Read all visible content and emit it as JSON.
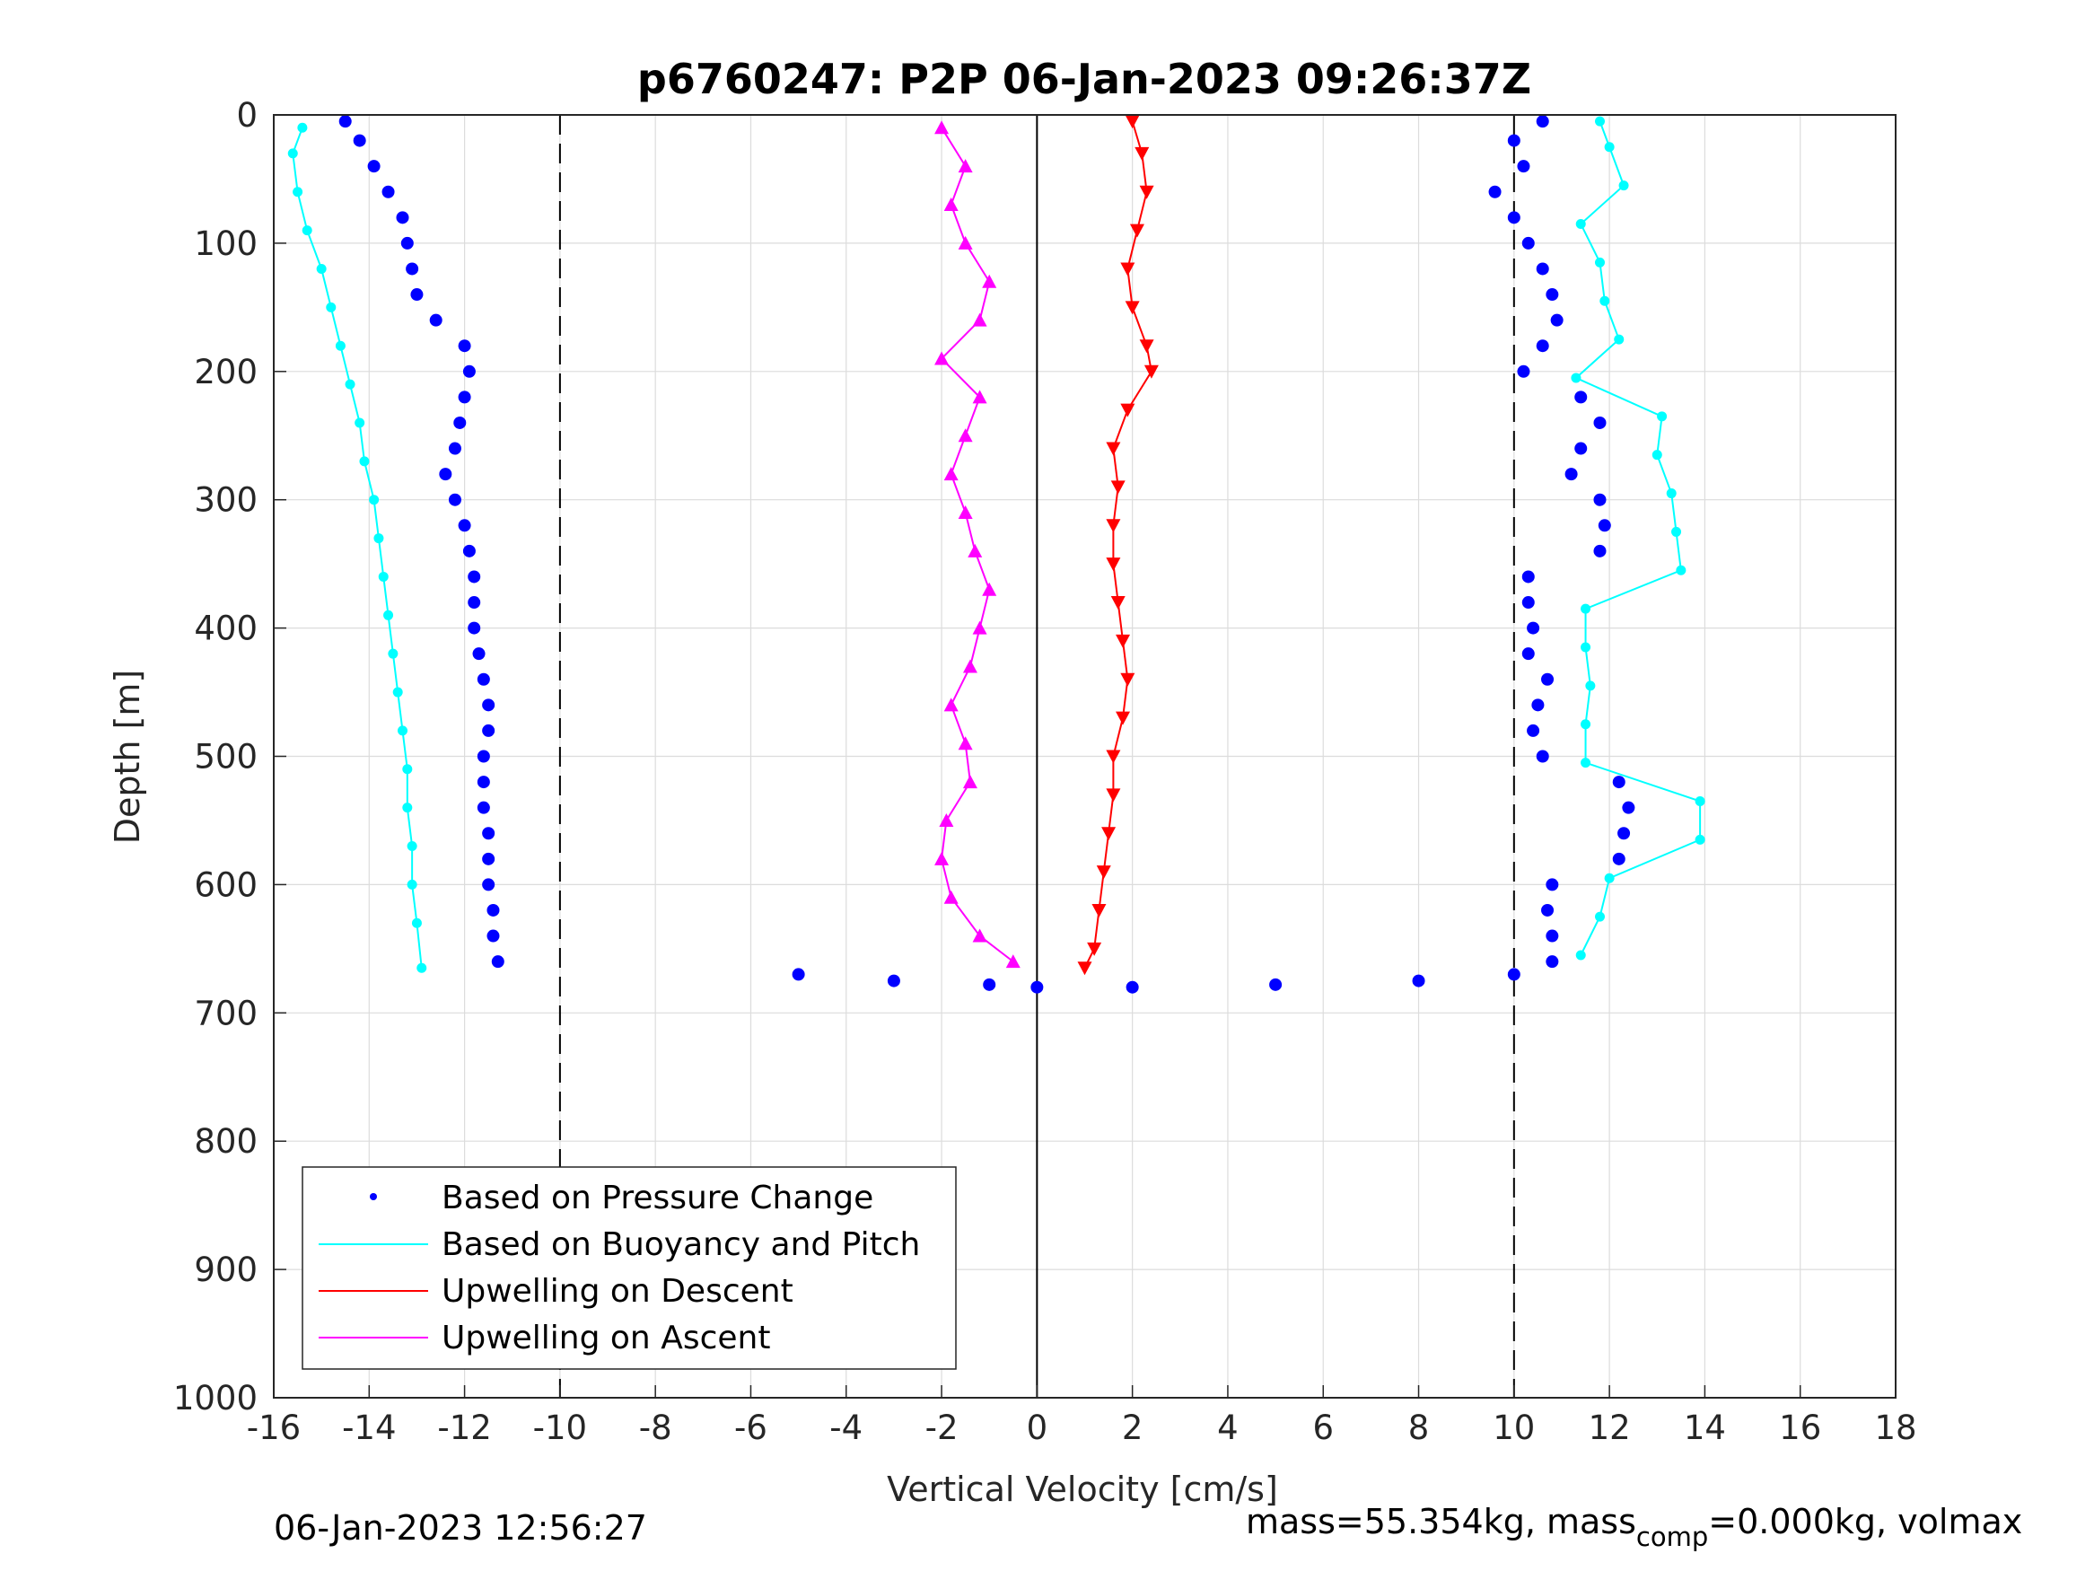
{
  "chart_data": {
    "type": "scatter",
    "title": "p6760247: P2P 06-Jan-2023 09:26:37Z",
    "xlabel": "Vertical Velocity [cm/s]",
    "ylabel": "Depth [m]",
    "xlim": [
      -16,
      18
    ],
    "ylim": [
      0,
      1000
    ],
    "y_reversed": true,
    "xticks": [
      -16,
      -14,
      -12,
      -10,
      -8,
      -6,
      -4,
      -2,
      0,
      2,
      4,
      6,
      8,
      10,
      12,
      14,
      16,
      18
    ],
    "xtick_labels": [
      "-16",
      "-14",
      "-12",
      "-10",
      "-8",
      "-6",
      "-4",
      "-2",
      "0",
      "2",
      "4",
      "6",
      "8",
      "10",
      "12",
      "14",
      "16",
      "18"
    ],
    "yticks": [
      0,
      100,
      200,
      300,
      400,
      500,
      600,
      700,
      800,
      900,
      1000
    ],
    "ytick_labels": [
      "0",
      "100",
      "200",
      "300",
      "400",
      "500",
      "600",
      "700",
      "800",
      "900",
      "1000"
    ],
    "grid": true,
    "legend_position": "bottom-left",
    "reference_lines": [
      {
        "x": -10,
        "style": "dashed"
      },
      {
        "x": 0,
        "style": "solid"
      },
      {
        "x": 10,
        "style": "dashed"
      }
    ],
    "legend": [
      {
        "label": "Based on Pressure Change",
        "color": "#0000ff",
        "marker": "dot"
      },
      {
        "label": "Based on Buoyancy and Pitch",
        "color": "#00ffff",
        "marker": "line"
      },
      {
        "label": "Upwelling on Descent",
        "color": "#ff0000",
        "marker": "line"
      },
      {
        "label": "Upwelling on Ascent",
        "color": "#ff00ff",
        "marker": "line"
      }
    ],
    "series": [
      {
        "name": "Based on Pressure Change",
        "role": "pressure_descent",
        "color": "#0000ff",
        "depth": [
          5,
          20,
          40,
          60,
          80,
          100,
          120,
          140,
          160,
          180,
          200,
          220,
          240,
          260,
          280,
          300,
          320,
          340,
          360,
          380,
          400,
          420,
          440,
          460,
          480,
          500,
          520,
          540,
          560,
          580,
          600,
          620,
          640,
          660
        ],
        "velocity": [
          -14.5,
          -14.2,
          -13.9,
          -13.6,
          -13.3,
          -13.2,
          -13.1,
          -13.0,
          -12.6,
          -12.0,
          -11.9,
          -12.0,
          -12.1,
          -12.2,
          -12.4,
          -12.2,
          -12.0,
          -11.9,
          -11.8,
          -11.8,
          -11.8,
          -11.7,
          -11.6,
          -11.5,
          -11.5,
          -11.6,
          -11.6,
          -11.6,
          -11.5,
          -11.5,
          -11.5,
          -11.4,
          -11.4,
          -11.3
        ]
      },
      {
        "name": "Based on Buoyancy and Pitch",
        "role": "buoyancy_descent",
        "color": "#00ffff",
        "depth": [
          10,
          30,
          60,
          90,
          120,
          150,
          180,
          210,
          240,
          270,
          300,
          330,
          360,
          390,
          420,
          450,
          480,
          510,
          540,
          570,
          600,
          630,
          665
        ],
        "velocity": [
          -15.4,
          -15.6,
          -15.5,
          -15.3,
          -15.0,
          -14.8,
          -14.6,
          -14.4,
          -14.2,
          -14.1,
          -13.9,
          -13.8,
          -13.7,
          -13.6,
          -13.5,
          -13.4,
          -13.3,
          -13.2,
          -13.2,
          -13.1,
          -13.1,
          -13.0,
          -12.9
        ]
      },
      {
        "name": "Based on Pressure Change",
        "role": "pressure_ascent",
        "color": "#0000ff",
        "depth": [
          660,
          640,
          620,
          600,
          580,
          560,
          540,
          520,
          500,
          480,
          460,
          440,
          420,
          400,
          380,
          360,
          340,
          320,
          300,
          280,
          260,
          240,
          220,
          200,
          180,
          160,
          140,
          120,
          100,
          80,
          60,
          40,
          20,
          5
        ],
        "velocity": [
          10.8,
          10.8,
          10.7,
          10.8,
          12.2,
          12.3,
          12.4,
          12.2,
          10.6,
          10.4,
          10.5,
          10.7,
          10.3,
          10.4,
          10.3,
          10.3,
          11.8,
          11.9,
          11.8,
          11.2,
          11.4,
          11.8,
          11.4,
          10.2,
          10.6,
          10.9,
          10.8,
          10.6,
          10.3,
          10.0,
          9.6,
          10.2,
          10.0,
          10.6
        ]
      },
      {
        "name": "Based on Buoyancy and Pitch",
        "role": "buoyancy_ascent",
        "color": "#00ffff",
        "depth": [
          655,
          625,
          595,
          565,
          535,
          505,
          475,
          445,
          415,
          385,
          355,
          325,
          295,
          265,
          235,
          205,
          175,
          145,
          115,
          85,
          55,
          25,
          5
        ],
        "velocity": [
          11.4,
          11.8,
          12.0,
          13.9,
          13.9,
          11.5,
          11.5,
          11.6,
          11.5,
          11.5,
          13.5,
          13.4,
          13.3,
          13.0,
          13.1,
          11.3,
          12.2,
          11.9,
          11.8,
          11.4,
          12.3,
          12.0,
          11.8
        ]
      },
      {
        "name": "Upwelling on Descent",
        "role": "upwelling_descent",
        "color": "#ff0000",
        "depth": [
          5,
          30,
          60,
          90,
          120,
          150,
          180,
          200,
          230,
          260,
          290,
          320,
          350,
          380,
          410,
          440,
          470,
          500,
          530,
          560,
          590,
          620,
          650,
          665
        ],
        "velocity": [
          2.0,
          2.2,
          2.3,
          2.1,
          1.9,
          2.0,
          2.3,
          2.4,
          1.9,
          1.6,
          1.7,
          1.6,
          1.6,
          1.7,
          1.8,
          1.9,
          1.8,
          1.6,
          1.6,
          1.5,
          1.4,
          1.3,
          1.2,
          1.0
        ]
      },
      {
        "name": "Upwelling on Ascent",
        "role": "upwelling_ascent",
        "color": "#ff00ff",
        "depth": [
          660,
          640,
          610,
          580,
          550,
          520,
          490,
          460,
          430,
          400,
          370,
          340,
          310,
          280,
          250,
          220,
          190,
          160,
          130,
          100,
          70,
          40,
          10
        ],
        "velocity": [
          -0.5,
          -1.2,
          -1.8,
          -2.0,
          -1.9,
          -1.4,
          -1.5,
          -1.8,
          -1.4,
          -1.2,
          -1.0,
          -1.3,
          -1.5,
          -1.8,
          -1.5,
          -1.2,
          -2.0,
          -1.2,
          -1.0,
          -1.5,
          -1.8,
          -1.5,
          -2.0
        ]
      },
      {
        "name": "Based on Pressure Change",
        "role": "pressure_bottom_turn",
        "color": "#0000ff",
        "depth": [
          670,
          675,
          678,
          680,
          680,
          678,
          675,
          670
        ],
        "velocity": [
          -5.0,
          -3.0,
          -1.0,
          0.0,
          2.0,
          5.0,
          8.0,
          10.0
        ]
      }
    ],
    "footer_left": "06-Jan-2023 12:56:27",
    "footer_right_main": "mass=55.354kg, mass",
    "footer_right_sub": "comp",
    "footer_right_tail": "=0.000kg, volmax"
  },
  "colors": {
    "pressure": "#0000ff",
    "buoyancy": "#00ffff",
    "upwelling_descent": "#ff0000",
    "upwelling_ascent": "#ff00ff"
  }
}
